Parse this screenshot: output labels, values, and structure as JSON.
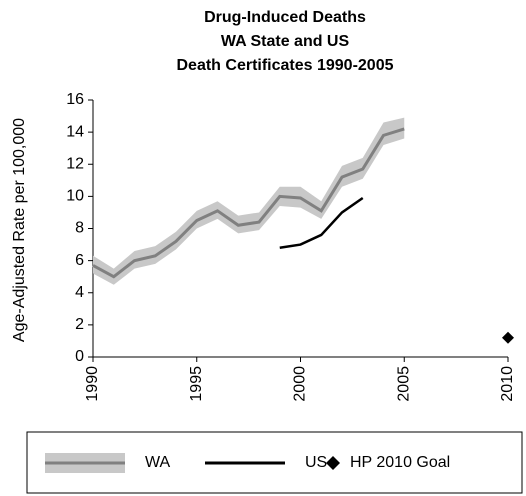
{
  "chart_data": {
    "type": "line",
    "title": [
      "Drug-Induced Deaths",
      "WA State and US",
      "Death Certificates 1990-2005"
    ],
    "y_label": "Age-Adjusted Rate per 100,000",
    "x": [
      1990,
      1991,
      1992,
      1993,
      1994,
      1995,
      1996,
      1997,
      1998,
      1999,
      2000,
      2001,
      2002,
      2003,
      2004,
      2005,
      2006,
      2007,
      2008,
      2009,
      2010
    ],
    "series": [
      {
        "name": "WA",
        "color": "#808080",
        "band_color": "#c8c8c8",
        "values": [
          5.7,
          5.0,
          6.0,
          6.3,
          7.2,
          8.5,
          9.1,
          8.2,
          8.4,
          10.0,
          9.9,
          9.1,
          11.2,
          11.7,
          13.8,
          14.2,
          null,
          null,
          null,
          null,
          null
        ],
        "lower": [
          5.2,
          4.5,
          5.5,
          5.8,
          6.7,
          8.0,
          8.6,
          7.7,
          7.9,
          9.4,
          9.3,
          8.6,
          10.6,
          11.1,
          13.2,
          13.6,
          null,
          null,
          null,
          null,
          null
        ],
        "upper": [
          6.3,
          5.5,
          6.6,
          6.9,
          7.8,
          9.1,
          9.7,
          8.8,
          9.0,
          10.6,
          10.6,
          9.7,
          11.9,
          12.4,
          14.6,
          14.9,
          null,
          null,
          null,
          null,
          null
        ]
      },
      {
        "name": "US",
        "color": "#000000",
        "values": [
          null,
          null,
          null,
          null,
          null,
          null,
          null,
          null,
          null,
          6.8,
          7.0,
          7.6,
          9.0,
          9.9,
          null,
          null,
          null,
          null,
          null,
          null,
          null
        ]
      },
      {
        "name": "HP 2010 Goal",
        "color": "#000000",
        "marker": "diamond",
        "values": [
          null,
          null,
          null,
          null,
          null,
          null,
          null,
          null,
          null,
          null,
          null,
          null,
          null,
          null,
          null,
          null,
          null,
          null,
          null,
          null,
          1.2
        ]
      }
    ],
    "xlim": [
      1990,
      2010
    ],
    "xticks": [
      1990,
      1995,
      2000,
      2005,
      2010
    ],
    "ylim": [
      0,
      16
    ],
    "yticks": [
      0,
      2,
      4,
      6,
      8,
      10,
      12,
      14,
      16
    ],
    "grid": false
  }
}
